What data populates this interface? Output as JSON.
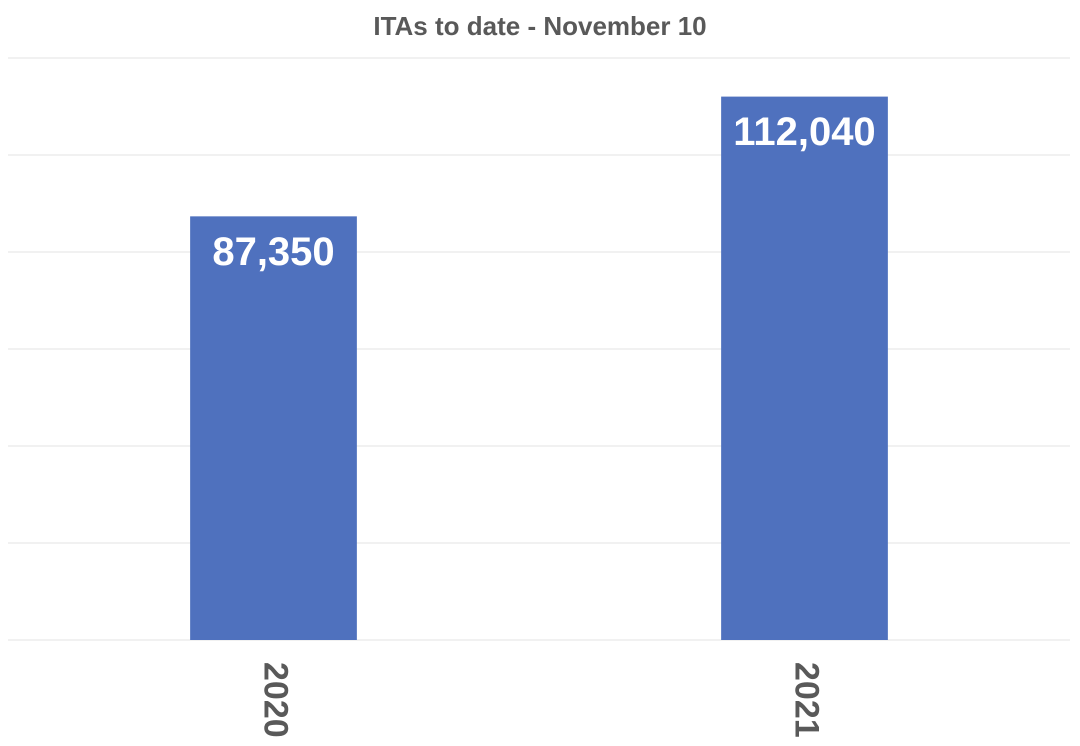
{
  "chart_data": {
    "type": "bar",
    "title": "ITAs to date - November 10",
    "categories": [
      "2020",
      "2021"
    ],
    "values": [
      87350,
      112040
    ],
    "value_labels": [
      "87,350",
      "112,040"
    ],
    "color": "#4f71be",
    "ylim": [
      0,
      120000
    ],
    "yticks": [
      0,
      20000,
      40000,
      60000,
      80000,
      100000,
      120000
    ],
    "grid": true
  }
}
